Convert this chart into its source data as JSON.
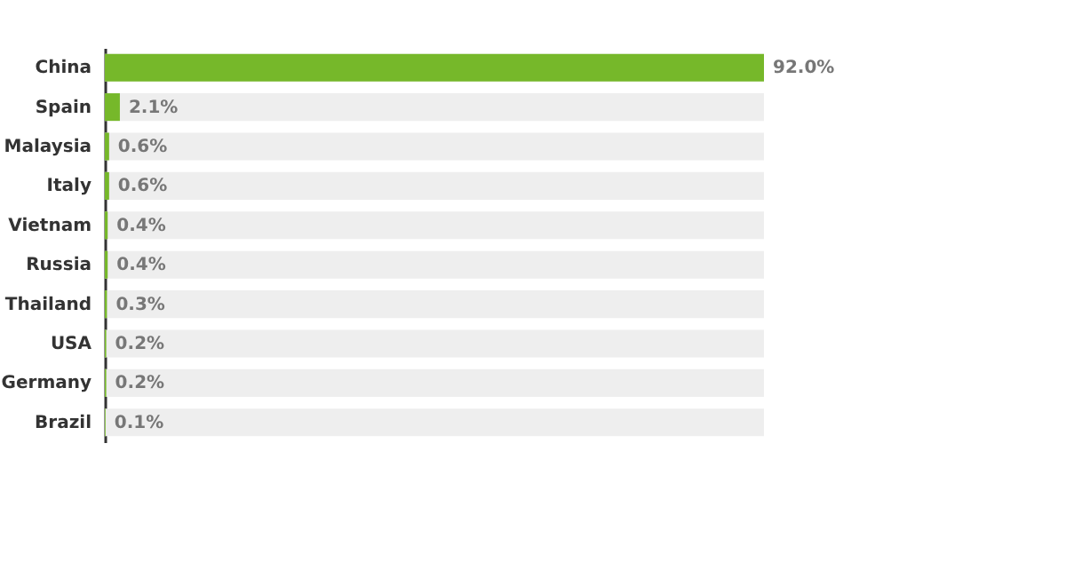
{
  "chart_data": {
    "type": "bar",
    "orientation": "horizontal",
    "categories": [
      "China",
      "Spain",
      "Malaysia",
      "Italy",
      "Vietnam",
      "Russia",
      "Thailand",
      "USA",
      "Germany",
      "Brazil"
    ],
    "values": [
      92.0,
      2.1,
      0.6,
      0.6,
      0.4,
      0.4,
      0.3,
      0.2,
      0.2,
      0.1
    ],
    "value_labels": [
      "92.0%",
      "2.1%",
      "0.6%",
      "0.6%",
      "0.4%",
      "0.4%",
      "0.3%",
      "0.2%",
      "0.2%",
      "0.1%"
    ],
    "color": "#76b82a",
    "tick_labels": "y",
    "grid": false
  }
}
